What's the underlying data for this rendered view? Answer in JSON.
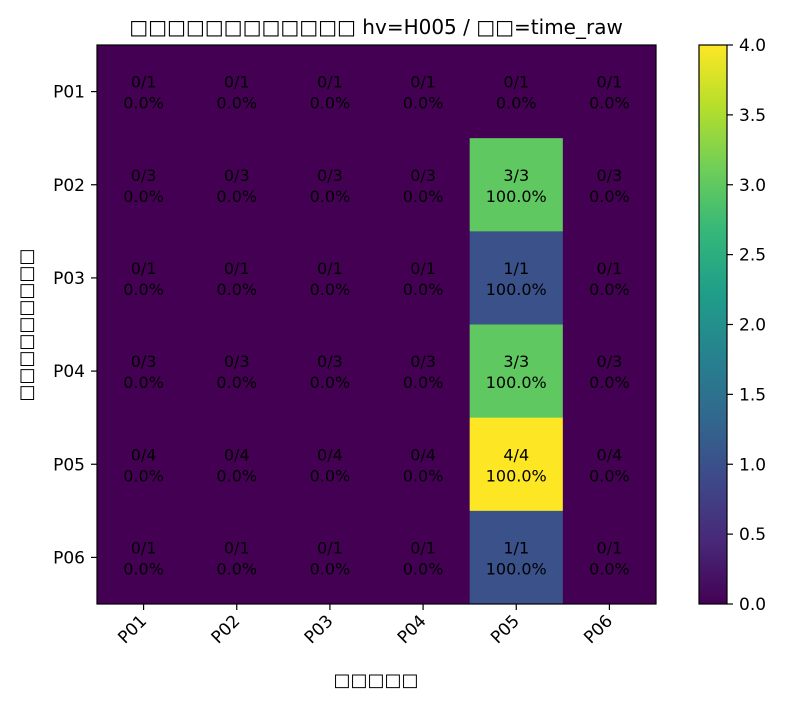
{
  "chart_data": {
    "type": "heatmap",
    "title": "□□□□□□□□□□□□ hv=H005 / □□=time_raw",
    "xlabel": "□□□□□",
    "ylabel": "□□□□□□□□□",
    "x_categories": [
      "P01",
      "P02",
      "P03",
      "P04",
      "P05",
      "P06"
    ],
    "y_categories": [
      "P01",
      "P02",
      "P03",
      "P04",
      "P05",
      "P06"
    ],
    "values": [
      [
        0,
        0,
        0,
        0,
        0,
        0
      ],
      [
        0,
        0,
        0,
        0,
        3,
        0
      ],
      [
        0,
        0,
        0,
        0,
        1,
        0
      ],
      [
        0,
        0,
        0,
        0,
        3,
        0
      ],
      [
        0,
        0,
        0,
        0,
        4,
        0
      ],
      [
        0,
        0,
        0,
        0,
        1,
        0
      ]
    ],
    "annotations": [
      [
        [
          "0/1",
          "0.0%"
        ],
        [
          "0/1",
          "0.0%"
        ],
        [
          "0/1",
          "0.0%"
        ],
        [
          "0/1",
          "0.0%"
        ],
        [
          "0/1",
          "0.0%"
        ],
        [
          "0/1",
          "0.0%"
        ]
      ],
      [
        [
          "0/3",
          "0.0%"
        ],
        [
          "0/3",
          "0.0%"
        ],
        [
          "0/3",
          "0.0%"
        ],
        [
          "0/3",
          "0.0%"
        ],
        [
          "3/3",
          "100.0%"
        ],
        [
          "0/3",
          "0.0%"
        ]
      ],
      [
        [
          "0/1",
          "0.0%"
        ],
        [
          "0/1",
          "0.0%"
        ],
        [
          "0/1",
          "0.0%"
        ],
        [
          "0/1",
          "0.0%"
        ],
        [
          "1/1",
          "100.0%"
        ],
        [
          "0/1",
          "0.0%"
        ]
      ],
      [
        [
          "0/3",
          "0.0%"
        ],
        [
          "0/3",
          "0.0%"
        ],
        [
          "0/3",
          "0.0%"
        ],
        [
          "0/3",
          "0.0%"
        ],
        [
          "3/3",
          "100.0%"
        ],
        [
          "0/3",
          "0.0%"
        ]
      ],
      [
        [
          "0/4",
          "0.0%"
        ],
        [
          "0/4",
          "0.0%"
        ],
        [
          "0/4",
          "0.0%"
        ],
        [
          "0/4",
          "0.0%"
        ],
        [
          "4/4",
          "100.0%"
        ],
        [
          "0/4",
          "0.0%"
        ]
      ],
      [
        [
          "0/1",
          "0.0%"
        ],
        [
          "0/1",
          "0.0%"
        ],
        [
          "0/1",
          "0.0%"
        ],
        [
          "0/1",
          "0.0%"
        ],
        [
          "1/1",
          "100.0%"
        ],
        [
          "0/1",
          "0.0%"
        ]
      ]
    ],
    "colorbar": {
      "range": [
        0,
        4
      ],
      "ticks": [
        "0.0",
        "0.5",
        "1.0",
        "1.5",
        "2.0",
        "2.5",
        "3.0",
        "3.5",
        "4.0"
      ],
      "colormap": "viridis"
    },
    "colors": {
      "viridis_stops": [
        "#440154",
        "#482878",
        "#3e4989",
        "#31688e",
        "#26828e",
        "#1f9e89",
        "#35b779",
        "#6ece58",
        "#b5de2b",
        "#fde725"
      ]
    },
    "grid": false
  }
}
